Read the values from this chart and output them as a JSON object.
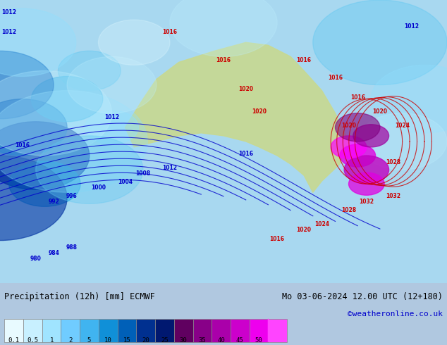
{
  "title_left": "Precipitation (12h) [mm] ECMWF",
  "title_right": "Mo 03-06-2024 12.00 UTC (12+180)",
  "watermark": "©weatheronline.co.uk",
  "colorbar_values": [
    0.1,
    0.5,
    1,
    2,
    5,
    10,
    15,
    20,
    25,
    30,
    35,
    40,
    45,
    50
  ],
  "colorbar_colors": [
    "#e0f8ff",
    "#c0f0ff",
    "#90e0ff",
    "#60c8f0",
    "#30b0e8",
    "#0090d8",
    "#0060c0",
    "#0030a0",
    "#001880",
    "#800080",
    "#a000a0",
    "#c000c0",
    "#e000e0",
    "#ff00ff",
    "#ff60ff"
  ],
  "bg_color": "#c8eeff",
  "fig_width": 6.34,
  "fig_height": 4.9,
  "dpi": 100,
  "bottom_bg": "#d0d0d0",
  "label_fontsize": 8.5,
  "text_color": "#000000",
  "right_text_color": "#000000",
  "watermark_color": "#0000cc"
}
